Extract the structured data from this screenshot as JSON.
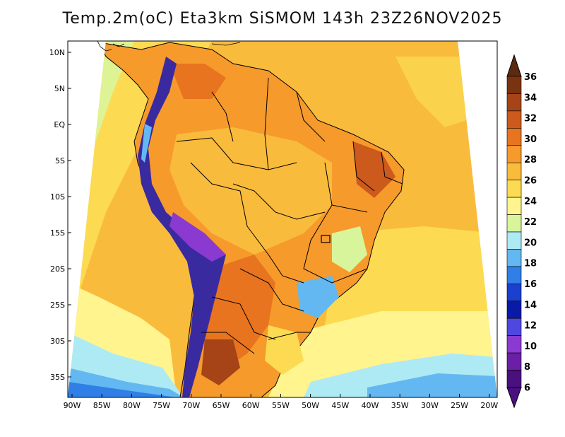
{
  "title": "Temp.2m(oC) Eta3km SiSMOM 143h 23Z26NOV2025",
  "axes": {
    "lat_labels": [
      "10N",
      "5N",
      "EQ",
      "5S",
      "10S",
      "15S",
      "20S",
      "25S",
      "30S",
      "35S"
    ],
    "lon_labels": [
      "90W",
      "85W",
      "80W",
      "75W",
      "70W",
      "65W",
      "60W",
      "55W",
      "50W",
      "45W",
      "40W",
      "35W",
      "30W",
      "25W",
      "20W"
    ]
  },
  "colorbar": {
    "labels": [
      "36",
      "34",
      "32",
      "30",
      "28",
      "26",
      "24",
      "22",
      "20",
      "18",
      "16",
      "14",
      "12",
      "10",
      "8",
      "6"
    ],
    "colors": [
      "#7a3311",
      "#a64417",
      "#cc5a1c",
      "#e8741f",
      "#f69a2c",
      "#f9bb3c",
      "#fcdb52",
      "#fff48e",
      "#d9f59b",
      "#aeeaf4",
      "#63b8f2",
      "#2f7fe6",
      "#1b3fcf",
      "#0a1aa8",
      "#4f47e0",
      "#8a3ad0",
      "#6a1fa6",
      "#4a1080"
    ],
    "top_color": "#5c2a0e",
    "bottom_color": "#4a1080"
  },
  "colors": {
    "ocean_warm": "#f9bb3c",
    "ocean_mild": "#fcdb52",
    "ocean_cool": "#fff48e",
    "land_hot": "#e8741f",
    "andes": "#3a2aa0"
  }
}
